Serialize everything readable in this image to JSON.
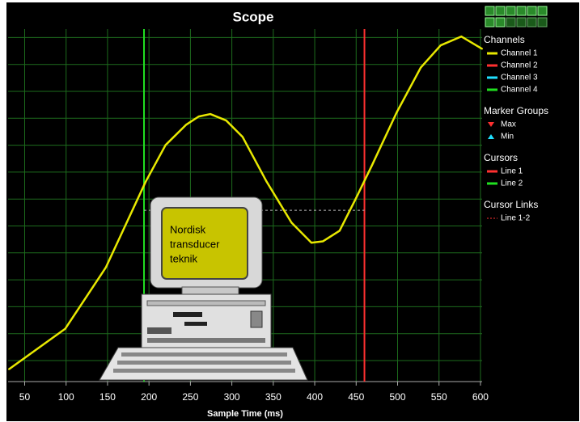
{
  "chart_data": {
    "type": "line",
    "title": "Scope",
    "x_label": "Sample Time (ms)",
    "x": [
      31,
      99,
      148,
      196,
      220,
      245,
      260,
      274,
      293,
      313,
      342,
      372,
      396,
      410,
      430,
      450,
      469,
      499,
      528,
      552,
      577,
      602
    ],
    "series": [
      {
        "name": "Channel 1",
        "color": "#e8e800",
        "values": [
          3.5,
          15,
          32.4,
          56.7,
          67.1,
          72.9,
          75.2,
          75.9,
          74.1,
          69.4,
          56.7,
          45.1,
          39.4,
          39.8,
          42.8,
          52.1,
          61.3,
          76.4,
          89.1,
          95.4,
          97.9,
          94.4
        ]
      },
      {
        "name": "Channel 2",
        "color": "#ff3030",
        "values": [
          null,
          null,
          null,
          null,
          null,
          null,
          null,
          null,
          null,
          null,
          null,
          null,
          null,
          null,
          null,
          null,
          null,
          null,
          null,
          null,
          null,
          null
        ]
      },
      {
        "name": "Channel 3",
        "color": "#20e0ff",
        "values": [
          null,
          null,
          null,
          null,
          null,
          null,
          null,
          null,
          null,
          null,
          null,
          null,
          null,
          null,
          null,
          null,
          null,
          null,
          null,
          null,
          null,
          null
        ]
      },
      {
        "name": "Channel 4",
        "color": "#20e020",
        "values": [
          null,
          null,
          null,
          null,
          null,
          null,
          null,
          null,
          null,
          null,
          null,
          null,
          null,
          null,
          null,
          null,
          null,
          null,
          null,
          null,
          null,
          null
        ]
      }
    ],
    "xlim": [
      30,
      602
    ],
    "xticks": [
      50,
      100,
      150,
      200,
      250,
      300,
      350,
      400,
      450,
      500,
      550,
      600
    ],
    "ylim": [
      0,
      100
    ],
    "grid": true,
    "legend_header": "Channels",
    "marker_groups": {
      "title": "Marker Groups",
      "items": [
        {
          "name": "Max",
          "color": "#ff3030"
        },
        {
          "name": "Min",
          "color": "#20e0ff"
        }
      ]
    },
    "cursors": {
      "title": "Cursors",
      "items": [
        {
          "name": "Line 1",
          "color": "#ff3030",
          "x": 460
        },
        {
          "name": "Line 2",
          "color": "#20e020",
          "x": 194
        }
      ]
    },
    "cursor_links": {
      "title": "Cursor Links",
      "items": [
        {
          "name": "Line 1-2",
          "y": 48.6
        }
      ]
    },
    "overlay_text": [
      "Nordisk",
      "transducer",
      "teknik"
    ]
  }
}
